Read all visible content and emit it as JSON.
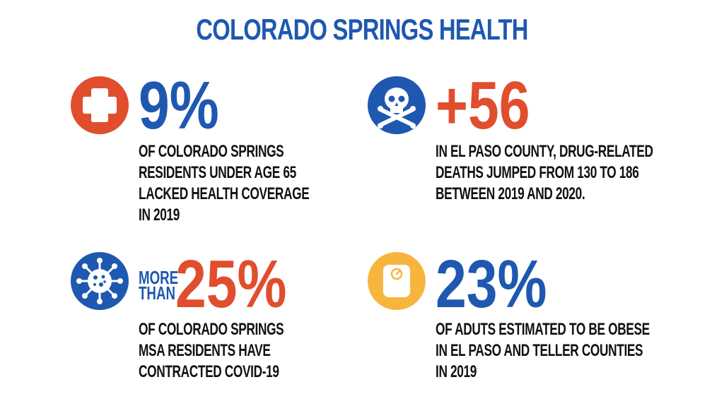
{
  "title": "COLORADO SPRINGS HEALTH",
  "colors": {
    "blue": "#1e58b0",
    "red": "#e04e2d",
    "yellow": "#f7b53e",
    "text": "#111111"
  },
  "stats": [
    {
      "icon": "medical-cross-icon",
      "value": "9%",
      "lines": [
        "OF COLORADO SPRINGS",
        "RESIDENTS UNDER AGE 65",
        "LACKED HEALTH COVERAGE",
        "IN 2019"
      ]
    },
    {
      "icon": "skull-crossbones-icon",
      "value": "+56",
      "lines": [
        "IN EL PASO COUNTY, DRUG-RELATED",
        "DEATHS JUMPED FROM 130 TO 186",
        "BETWEEN 2019 AND 2020."
      ]
    },
    {
      "icon": "virus-icon",
      "prefix": [
        "MORE",
        "THAN"
      ],
      "value": "25%",
      "lines": [
        "OF COLORADO SPRINGS",
        "MSA RESIDENTS HAVE",
        "CONTRACTED COVID-19"
      ]
    },
    {
      "icon": "scale-icon",
      "value": "23%",
      "lines": [
        "OF ADUTS ESTIMATED TO BE OBESE",
        "IN EL PASO AND TELLER COUNTIES",
        "IN 2019"
      ]
    }
  ]
}
